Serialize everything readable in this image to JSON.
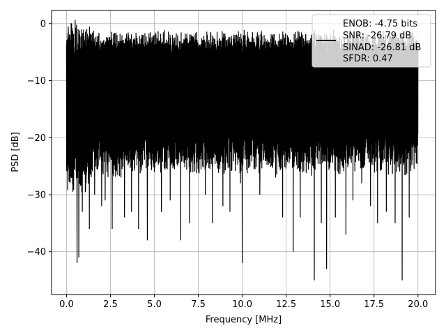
{
  "chart_data": {
    "type": "line",
    "title": "",
    "xlabel": "Frequency [MHz]",
    "ylabel": "PSD [dB]",
    "xlim": [
      -0.85,
      21.0
    ],
    "ylim": [
      -47.5,
      2.3
    ],
    "xticks": [
      0.0,
      2.5,
      5.0,
      7.5,
      10.0,
      12.5,
      15.0,
      17.5,
      20.0
    ],
    "xtick_labels": [
      "0.0",
      "2.5",
      "5.0",
      "7.5",
      "10.0",
      "12.5",
      "15.0",
      "17.5",
      "20.0"
    ],
    "yticks": [
      0,
      -10,
      -20,
      -30,
      -40
    ],
    "ytick_labels": [
      "0",
      "−10",
      "−20",
      "−30",
      "−40"
    ],
    "grid": true,
    "legend_position": "top-right",
    "line_color": "#000000",
    "series": [
      {
        "name": "",
        "sampled_peaks": {
          "x": [
            0.05,
            0.1,
            0.2,
            0.6,
            0.7,
            0.9,
            1.3,
            1.6,
            2.0,
            2.2,
            2.3,
            2.6,
            3.1,
            3.3,
            3.7,
            4.1,
            4.6,
            4.7,
            5.0,
            5.4,
            5.9,
            6.1,
            6.5,
            7.0,
            7.5,
            7.9,
            8.3,
            8.9,
            9.3,
            9.9,
            10.0,
            10.4,
            11.0,
            11.9,
            12.3,
            12.9,
            13.3,
            14.1,
            14.5,
            14.8,
            15.3,
            15.9,
            16.3,
            16.8,
            17.3,
            17.7,
            18.2,
            18.7,
            19.1,
            19.5,
            20.0
          ],
          "y": [
            -5,
            -0.5,
            -2,
            -42,
            -41,
            -33,
            -36,
            -30,
            -32,
            -31,
            -26,
            -36,
            -27,
            -34,
            -33,
            -36,
            -38,
            -9,
            -26,
            -33,
            -31,
            -25,
            -38,
            -35,
            -9,
            -30,
            -35,
            -32,
            -33,
            -28,
            -42,
            -4,
            -30,
            -27,
            -34,
            -40,
            -34,
            -45,
            -35,
            -43,
            -34,
            -37,
            -31,
            -28,
            -32,
            -35,
            -33,
            -35,
            -45,
            -34,
            -4
          ]
        }
      }
    ],
    "legend": {
      "lines": [
        "ENOB: -4.75 bits",
        "SNR: -26.79 dB",
        "SINAD: -26.81 dB",
        "SFDR: 0.47"
      ]
    }
  }
}
